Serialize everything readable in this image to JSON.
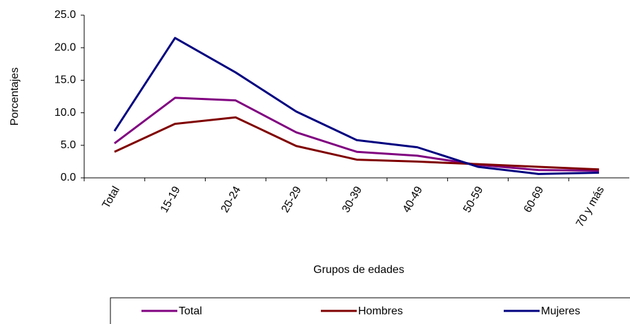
{
  "chart_data": {
    "type": "line",
    "x_label": "Grupos de edades",
    "y_label": "Porcentajes",
    "categories": [
      "Total",
      "15-19",
      "20-24",
      "25-29",
      "30-39",
      "40-49",
      "50-59",
      "60-69",
      "70 y más"
    ],
    "series": [
      {
        "name": "Total",
        "color": "#800080",
        "values": [
          5.3,
          12.3,
          11.9,
          7.0,
          4.0,
          3.4,
          2.0,
          1.2,
          1.1
        ]
      },
      {
        "name": "Hombres",
        "color": "#800000",
        "values": [
          4.0,
          8.3,
          9.3,
          4.9,
          2.8,
          2.5,
          2.1,
          1.7,
          1.3
        ]
      },
      {
        "name": "Mujeres",
        "color": "#000080",
        "values": [
          7.2,
          21.5,
          16.2,
          10.2,
          5.8,
          4.7,
          1.7,
          0.6,
          0.8
        ]
      }
    ],
    "ylim": [
      0,
      25
    ],
    "yticks": [
      {
        "value": 0,
        "label": "0.0"
      },
      {
        "value": 5,
        "label": "5.0"
      },
      {
        "value": 10,
        "label": "10.0"
      },
      {
        "value": 15,
        "label": "15.0"
      },
      {
        "value": 20,
        "label": "20.0"
      },
      {
        "value": 25,
        "label": "25.0"
      }
    ],
    "grid": false,
    "legend": "bottom"
  }
}
